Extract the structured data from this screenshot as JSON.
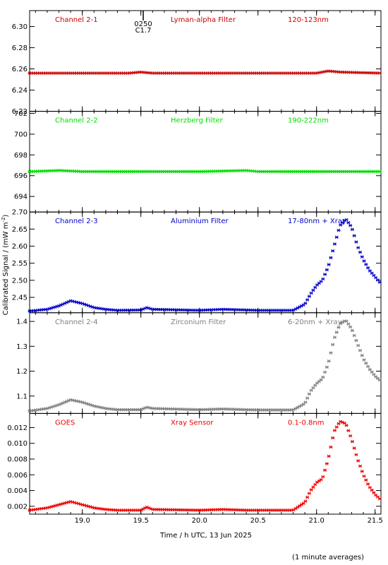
{
  "ylabel": "Calibrated Signal / (mW m",
  "ylabel_sup": "-2",
  "ylabel_end": ")",
  "footnote": "(1 minute averages)",
  "marker_label_top": "0250",
  "marker_label_bottom": "C1.7",
  "chart_data": [
    {
      "type": "scatter",
      "channel": "Channel 2-1",
      "filter": "Lyman-alpha Filter",
      "band": "120-123nm",
      "color": "#cc0000",
      "ylim": [
        6.22,
        6.315
      ],
      "yticks": [
        6.22,
        6.24,
        6.26,
        6.28,
        6.3
      ],
      "ytick_labels": [
        "6.22",
        "6.24",
        "6.26",
        "6.28",
        "6.30"
      ],
      "series": [
        {
          "x": [
            18.55,
            19.0,
            19.4,
            19.5,
            19.6,
            20.0,
            20.5,
            20.9,
            21.0,
            21.1,
            21.2,
            21.55
          ],
          "y": [
            6.256,
            6.256,
            6.256,
            6.257,
            6.256,
            6.256,
            6.256,
            6.256,
            6.256,
            6.258,
            6.257,
            6.256
          ]
        }
      ]
    },
    {
      "type": "scatter",
      "channel": "Channel 2-2",
      "filter": "Herzberg Filter",
      "band": "190-222nm",
      "color": "#00dd00",
      "ylim": [
        692.5,
        702.2
      ],
      "yticks": [
        694,
        696,
        698,
        700,
        702
      ],
      "ytick_labels": [
        "694",
        "696",
        "698",
        "700",
        "702"
      ],
      "series": [
        {
          "x": [
            18.55,
            18.8,
            19.0,
            19.5,
            20.0,
            20.4,
            20.5,
            21.0,
            21.55
          ],
          "y": [
            696.4,
            696.5,
            696.4,
            696.4,
            696.4,
            696.5,
            696.4,
            696.4,
            696.4
          ]
        }
      ]
    },
    {
      "type": "scatter",
      "channel": "Channel 2-3",
      "filter": "Aluminium Filter",
      "band": "17-80nm + Xray",
      "color": "#0000cc",
      "ylim": [
        2.405,
        2.7
      ],
      "yticks": [
        2.45,
        2.5,
        2.55,
        2.6,
        2.65,
        2.7
      ],
      "ytick_labels": [
        "2.45",
        "2.50",
        "2.55",
        "2.60",
        "2.65",
        "2.70"
      ],
      "series": [
        {
          "x": [
            18.55,
            18.7,
            18.8,
            18.9,
            19.0,
            19.1,
            19.2,
            19.3,
            19.5,
            19.55,
            19.6,
            20.0,
            20.2,
            20.4,
            20.5,
            20.8,
            20.9,
            20.95,
            21.0,
            21.05,
            21.1,
            21.15,
            21.2,
            21.25,
            21.3,
            21.35,
            21.4,
            21.45,
            21.5,
            21.55
          ],
          "y": [
            2.41,
            2.415,
            2.425,
            2.44,
            2.432,
            2.42,
            2.415,
            2.412,
            2.413,
            2.42,
            2.415,
            2.412,
            2.415,
            2.413,
            2.412,
            2.412,
            2.43,
            2.46,
            2.485,
            2.5,
            2.54,
            2.6,
            2.66,
            2.68,
            2.655,
            2.6,
            2.56,
            2.53,
            2.51,
            2.49
          ]
        }
      ]
    },
    {
      "type": "scatter",
      "channel": "Channel 2-4",
      "filter": "Zirconium Filter",
      "band": "6-20nm + Xray",
      "color": "#808080",
      "ylim": [
        1.03,
        1.435
      ],
      "yticks": [
        1.1,
        1.2,
        1.3,
        1.4
      ],
      "ytick_labels": [
        "1.1",
        "1.2",
        "1.3",
        "1.4"
      ],
      "series": [
        {
          "x": [
            18.55,
            18.7,
            18.8,
            18.9,
            19.0,
            19.1,
            19.2,
            19.3,
            19.5,
            19.55,
            19.6,
            20.0,
            20.2,
            20.4,
            20.5,
            20.8,
            20.9,
            20.95,
            21.0,
            21.05,
            21.1,
            21.15,
            21.2,
            21.25,
            21.3,
            21.35,
            21.4,
            21.45,
            21.5,
            21.55
          ],
          "y": [
            1.04,
            1.05,
            1.065,
            1.085,
            1.075,
            1.06,
            1.05,
            1.045,
            1.045,
            1.055,
            1.05,
            1.045,
            1.048,
            1.045,
            1.044,
            1.044,
            1.07,
            1.12,
            1.15,
            1.17,
            1.23,
            1.33,
            1.39,
            1.405,
            1.37,
            1.31,
            1.25,
            1.21,
            1.18,
            1.16
          ]
        }
      ]
    },
    {
      "type": "scatter",
      "channel": "GOES",
      "filter": "Xray Sensor",
      "band": "0.1-0.8nm",
      "color": "#ee0000",
      "ylim": [
        0.001,
        0.0138
      ],
      "yticks": [
        0.002,
        0.004,
        0.006,
        0.008,
        0.01,
        0.012
      ],
      "ytick_labels": [
        "0.002",
        "0.004",
        "0.006",
        "0.008",
        "0.010",
        "0.012"
      ],
      "series": [
        {
          "x": [
            18.55,
            18.7,
            18.8,
            18.9,
            19.0,
            19.1,
            19.2,
            19.3,
            19.5,
            19.55,
            19.6,
            20.0,
            20.2,
            20.4,
            20.5,
            20.8,
            20.9,
            20.95,
            21.0,
            21.05,
            21.1,
            21.15,
            21.2,
            21.25,
            21.3,
            21.35,
            21.4,
            21.45,
            21.5,
            21.55
          ],
          "y": [
            0.0015,
            0.0018,
            0.0022,
            0.0026,
            0.0022,
            0.0018,
            0.0016,
            0.0015,
            0.0015,
            0.0019,
            0.0016,
            0.0015,
            0.0016,
            0.0015,
            0.0015,
            0.0015,
            0.0025,
            0.004,
            0.005,
            0.0055,
            0.008,
            0.0115,
            0.0128,
            0.0125,
            0.0105,
            0.008,
            0.006,
            0.0045,
            0.0035,
            0.0028
          ]
        }
      ]
    }
  ],
  "xaxis": {
    "xlim": [
      18.55,
      21.55
    ],
    "ticks": [
      19.0,
      19.5,
      20.0,
      20.5,
      21.0,
      21.5
    ],
    "tick_labels": [
      "19.0",
      "19.5",
      "20.0",
      "20.5",
      "21.0",
      "21.5"
    ],
    "xlabel": "Time / h UTC, 13 Jun 2025"
  },
  "flare_marker_time": 19.52
}
